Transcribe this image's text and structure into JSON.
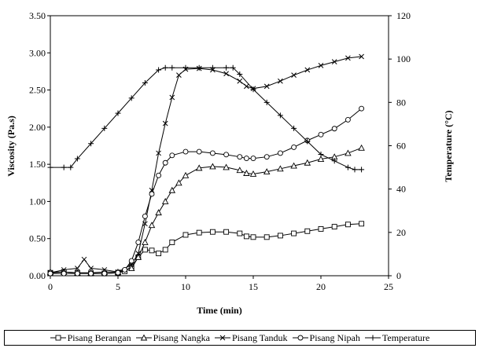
{
  "chart_data": {
    "type": "line",
    "title": "",
    "xlabel": "Time (min)",
    "ylabel": "Viscosity (Pa.s)",
    "y2label": "Temperature  (°C)",
    "xlim": [
      0,
      25
    ],
    "ylim": [
      0,
      3.5
    ],
    "y2lim": [
      0,
      120
    ],
    "xticks": [
      "0",
      "5",
      "10",
      "15",
      "20",
      "25"
    ],
    "yticks": [
      "0.00",
      "0.50",
      "1.00",
      "1.50",
      "2.00",
      "2.50",
      "3.00",
      "3.50"
    ],
    "y2ticks": [
      "0",
      "20",
      "40",
      "60",
      "80",
      "100",
      "120"
    ],
    "grid": false,
    "legend_position": "bottom",
    "series": [
      {
        "name": "Pisang Berangan",
        "marker": "square",
        "axis": "left",
        "x": [
          0,
          1,
          2,
          3,
          4,
          5,
          5.5,
          6,
          6.5,
          7,
          7.5,
          8,
          8.5,
          9,
          10,
          11,
          12,
          13,
          14,
          14.5,
          15,
          16,
          17,
          18,
          19,
          20,
          21,
          22,
          23
        ],
        "y": [
          0.04,
          0.05,
          0.04,
          0.03,
          0.03,
          0.04,
          0.06,
          0.12,
          0.25,
          0.35,
          0.34,
          0.3,
          0.35,
          0.45,
          0.55,
          0.58,
          0.59,
          0.59,
          0.57,
          0.53,
          0.52,
          0.52,
          0.54,
          0.57,
          0.6,
          0.63,
          0.66,
          0.69,
          0.7
        ]
      },
      {
        "name": "Pisang Nangka",
        "marker": "triangle",
        "axis": "left",
        "x": [
          0,
          1,
          2,
          3,
          4,
          5,
          6,
          6.5,
          7,
          7.5,
          8,
          8.5,
          9,
          9.5,
          10,
          11,
          12,
          13,
          14,
          14.5,
          15,
          16,
          17,
          18,
          19,
          20,
          21,
          22,
          23
        ],
        "y": [
          0.05,
          0.05,
          0.04,
          0.04,
          0.05,
          0.05,
          0.1,
          0.25,
          0.45,
          0.68,
          0.85,
          1.0,
          1.15,
          1.25,
          1.35,
          1.45,
          1.47,
          1.46,
          1.42,
          1.38,
          1.37,
          1.4,
          1.44,
          1.48,
          1.52,
          1.57,
          1.6,
          1.65,
          1.72
        ]
      },
      {
        "name": "Pisang Tanduk",
        "marker": "x",
        "axis": "left",
        "x": [
          0,
          1,
          2,
          2.5,
          3,
          4,
          5,
          6,
          6.5,
          7,
          7.5,
          8,
          8.5,
          9,
          9.5,
          10,
          11,
          12,
          13,
          14,
          14.5,
          15,
          16,
          17,
          18,
          19,
          20,
          21,
          22,
          23
        ],
        "y": [
          0.04,
          0.08,
          0.1,
          0.22,
          0.1,
          0.08,
          0.05,
          0.15,
          0.3,
          0.7,
          1.15,
          1.65,
          2.05,
          2.4,
          2.7,
          2.78,
          2.79,
          2.77,
          2.72,
          2.62,
          2.55,
          2.52,
          2.55,
          2.62,
          2.7,
          2.77,
          2.83,
          2.88,
          2.93,
          2.95
        ]
      },
      {
        "name": "Pisang Nipah",
        "marker": "circle",
        "axis": "left",
        "x": [
          0,
          1,
          2,
          3,
          4,
          5,
          5.5,
          6,
          6.5,
          7,
          7.5,
          8,
          8.5,
          9,
          10,
          11,
          12,
          13,
          14,
          14.5,
          15,
          16,
          17,
          18,
          19,
          20,
          21,
          22,
          23
        ],
        "y": [
          0.03,
          0.03,
          0.03,
          0.03,
          0.03,
          0.04,
          0.08,
          0.2,
          0.45,
          0.8,
          1.1,
          1.35,
          1.52,
          1.62,
          1.67,
          1.67,
          1.65,
          1.63,
          1.6,
          1.58,
          1.58,
          1.6,
          1.65,
          1.73,
          1.82,
          1.9,
          1.98,
          2.1,
          2.25
        ]
      },
      {
        "name": "Temperature",
        "marker": "plus",
        "axis": "right",
        "x": [
          0,
          1,
          1.5,
          2,
          3,
          4,
          5,
          6,
          7,
          8,
          8.5,
          9,
          10,
          11,
          12,
          13,
          13.5,
          14,
          15,
          16,
          17,
          18,
          19,
          20,
          21,
          22,
          22.5,
          23
        ],
        "y": [
          50,
          50,
          50,
          54,
          61,
          68,
          75,
          82,
          89,
          95,
          96,
          96,
          96,
          96,
          96,
          96,
          96,
          93,
          86,
          80,
          74,
          68,
          62,
          56,
          53,
          50,
          49,
          49
        ]
      }
    ]
  }
}
